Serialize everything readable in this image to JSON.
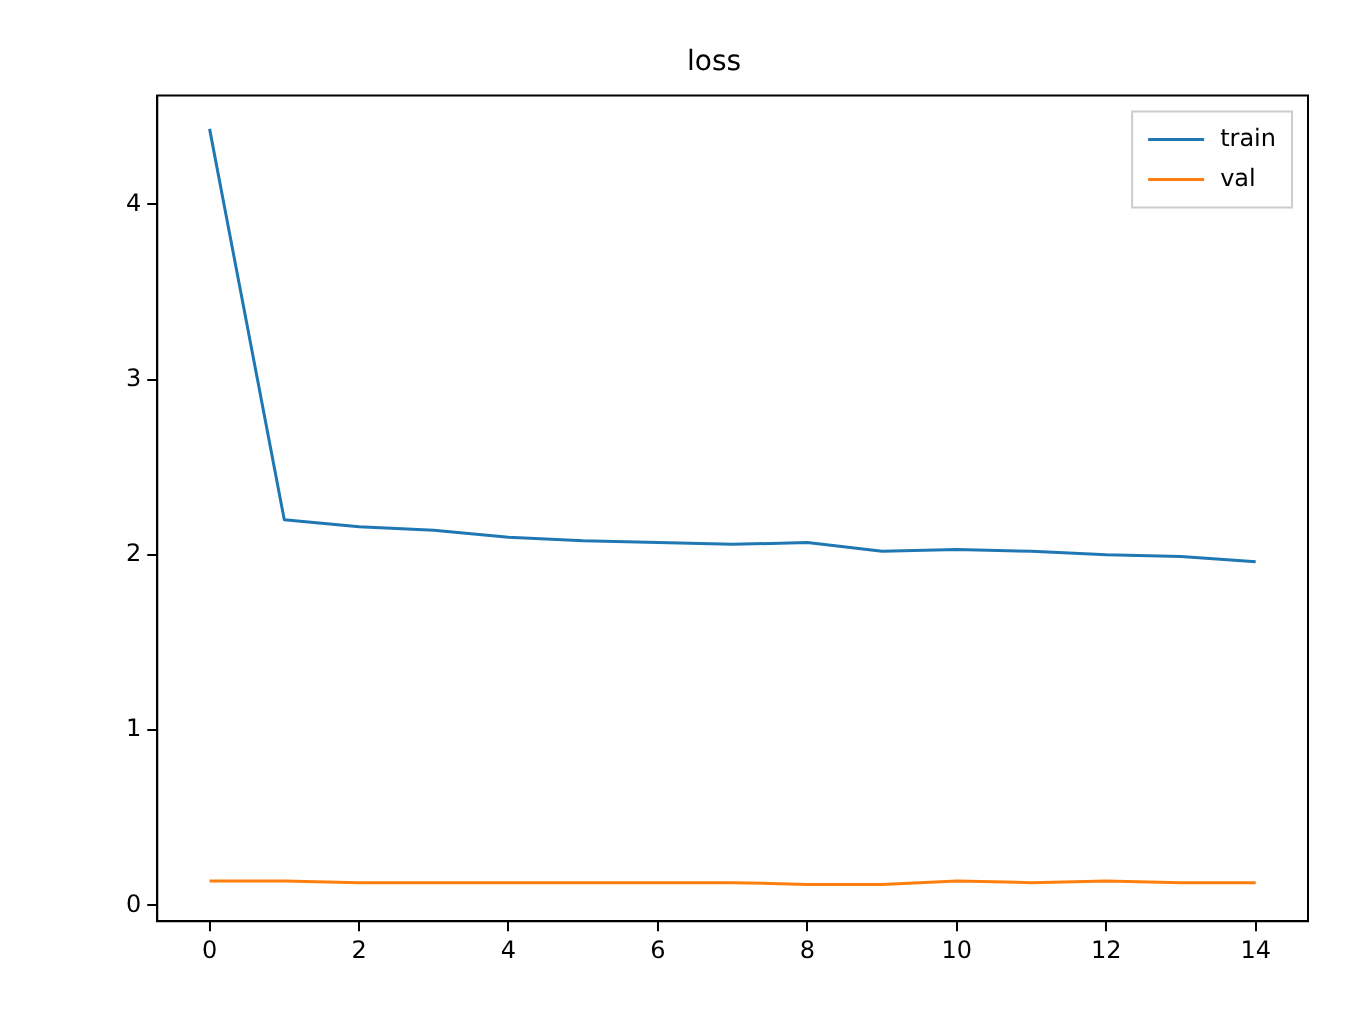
{
  "chart_data": {
    "type": "line",
    "title": "loss",
    "x": [
      0,
      1,
      2,
      3,
      4,
      5,
      6,
      7,
      8,
      9,
      10,
      11,
      12,
      13,
      14
    ],
    "series": [
      {
        "name": "train",
        "color": "#1f77b4",
        "values": [
          4.43,
          2.2,
          2.16,
          2.14,
          2.1,
          2.08,
          2.07,
          2.06,
          2.07,
          2.02,
          2.03,
          2.02,
          2.0,
          1.99,
          1.96
        ]
      },
      {
        "name": "val",
        "color": "#ff7f0e",
        "values": [
          0.14,
          0.14,
          0.13,
          0.13,
          0.13,
          0.13,
          0.13,
          0.13,
          0.12,
          0.12,
          0.14,
          0.13,
          0.14,
          0.13,
          0.13
        ]
      }
    ],
    "xlim": [
      -0.7,
      14.7
    ],
    "xticks": [
      0,
      2,
      4,
      6,
      8,
      10,
      12,
      14
    ],
    "ylim": [
      -0.09,
      4.62
    ],
    "yticks": [
      0,
      1,
      2,
      3,
      4
    ],
    "grid": false,
    "legend": "top right",
    "marker": "none",
    "line_style": "solid"
  }
}
